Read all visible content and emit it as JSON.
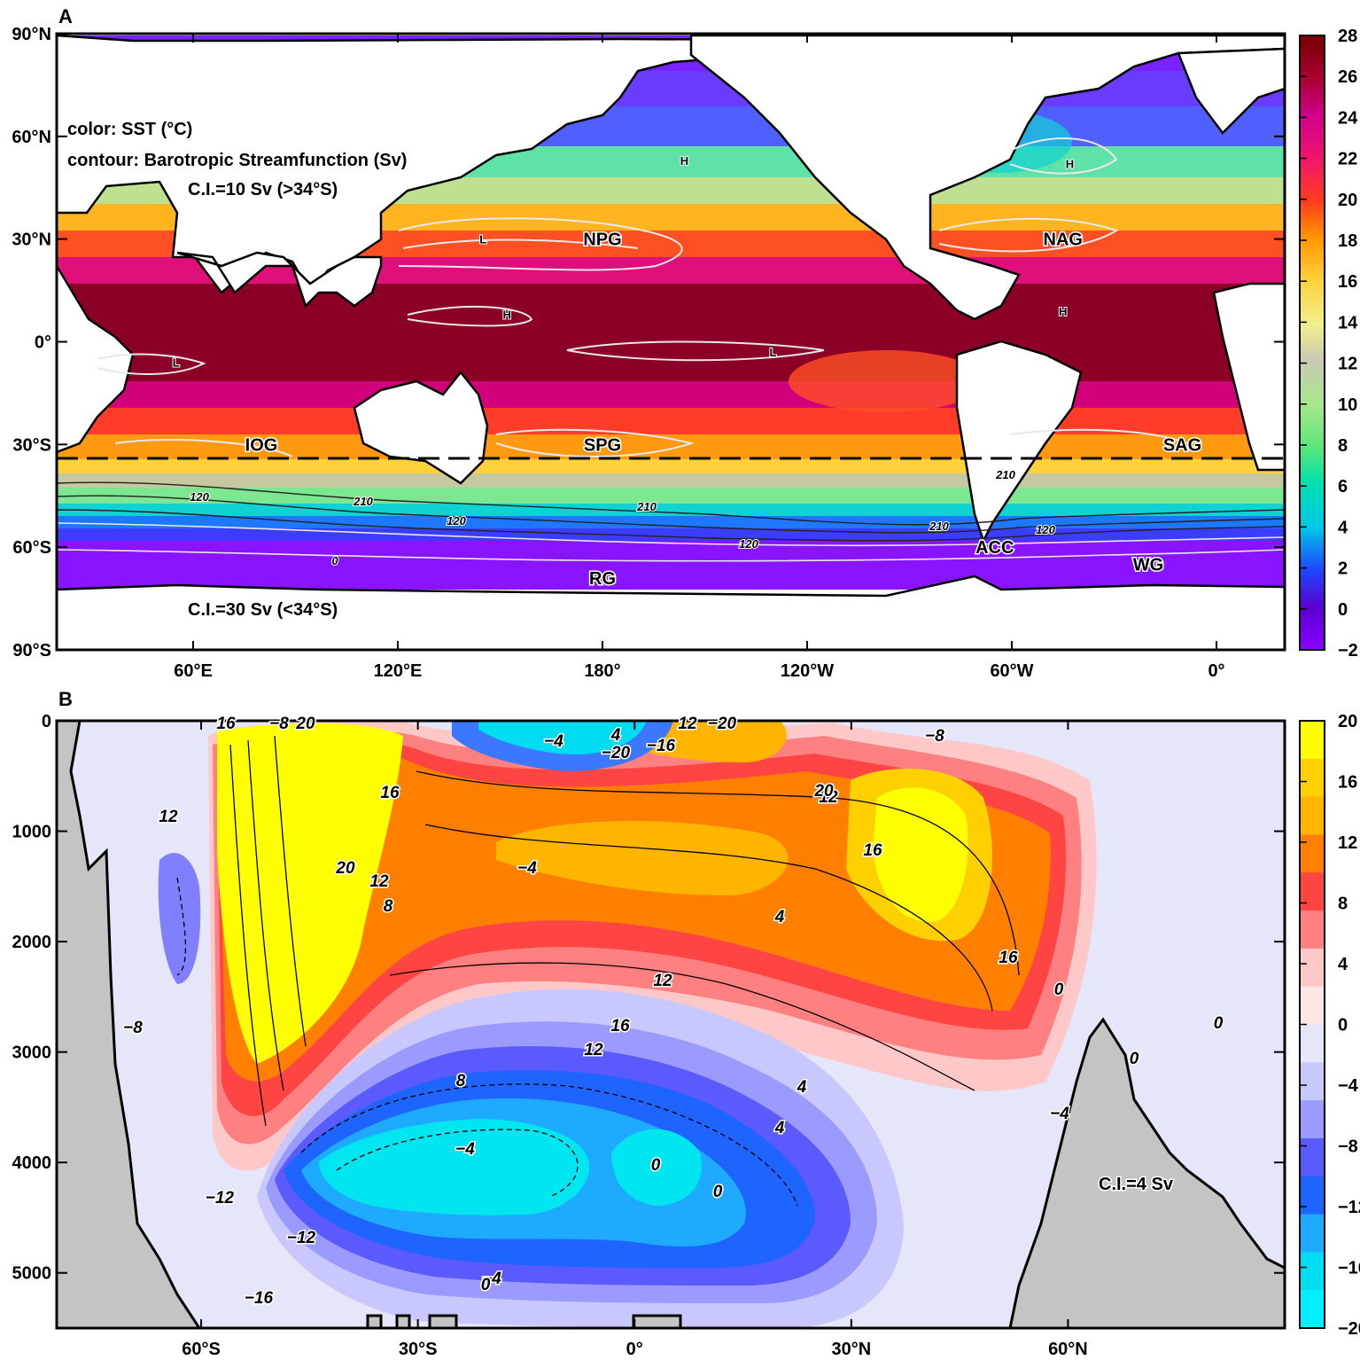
{
  "chart_data": [
    {
      "panel": "A",
      "type": "heatmap",
      "annotations": {
        "color_desc": "color: SST (°C)",
        "contour_desc": "contour: Barotropic Streamfunction (Sv)",
        "ci_north": "C.I.=10 Sv (>34°S)",
        "ci_south": "C.I.=30 Sv (<34°S)"
      },
      "x_ticks": [
        "60°E",
        "120°E",
        "180°",
        "120°W",
        "60°W",
        "0°"
      ],
      "y_ticks": [
        "90°N",
        "60°N",
        "30°N",
        "0°",
        "30°S",
        "60°S",
        "90°S"
      ],
      "colorbar": {
        "ticks": [
          "28",
          "26",
          "24",
          "22",
          "20",
          "18",
          "16",
          "14",
          "12",
          "10",
          "8",
          "6",
          "4",
          "2",
          "0",
          "−2"
        ],
        "range": [
          -2,
          28
        ]
      },
      "regions": [
        {
          "label": "NPG",
          "lon": 180,
          "lat": 30
        },
        {
          "label": "NAG",
          "lon": -45,
          "lat": 30
        },
        {
          "label": "IOG",
          "lon": 80,
          "lat": -30
        },
        {
          "label": "SPG",
          "lon": 180,
          "lat": -30
        },
        {
          "label": "SAG",
          "lon": -10,
          "lat": -30
        },
        {
          "label": "ACC",
          "lon": -65,
          "lat": -60
        },
        {
          "label": "RG",
          "lon": 180,
          "lat": -69
        },
        {
          "label": "WG",
          "lon": -20,
          "lat": -65
        }
      ],
      "highs_lows": [
        {
          "label": "H",
          "lon": -156,
          "lat": 53
        },
        {
          "label": "H",
          "lon": -43,
          "lat": 52
        },
        {
          "label": "H",
          "lon": 152,
          "lat": 8
        },
        {
          "label": "H",
          "lon": -45,
          "lat": 9
        },
        {
          "label": "L",
          "lon": 145,
          "lat": 30
        },
        {
          "label": "L",
          "lon": -130,
          "lat": -3
        },
        {
          "label": "L",
          "lon": 55,
          "lat": -6
        }
      ],
      "contour_labels": [
        "120",
        "210",
        "210",
        "120",
        "120",
        "210",
        "120",
        "210",
        "0"
      ],
      "boundary_lat": -34
    },
    {
      "panel": "B",
      "type": "heatmap",
      "annotation": "C.I.=4 Sv",
      "x_ticks": [
        "60°S",
        "30°S",
        "0°",
        "30°N",
        "60°N"
      ],
      "y_ticks": [
        "0",
        "1000",
        "2000",
        "3000",
        "4000",
        "5000"
      ],
      "colorbar": {
        "ticks": [
          "20",
          "16",
          "12",
          "8",
          "4",
          "0",
          "−4",
          "−8",
          "−12",
          "−16",
          "−20"
        ],
        "range": [
          -20,
          20
        ]
      },
      "cells": [
        {
          "lat": -50,
          "depth": 1200,
          "value": 22
        },
        {
          "lat": -48,
          "depth": 2200,
          "value": 20
        },
        {
          "lat": 0,
          "depth": 1400,
          "value": 13
        },
        {
          "lat": 42,
          "depth": 1200,
          "value": 18
        },
        {
          "lat": -30,
          "depth": 3900,
          "value": -17
        },
        {
          "lat": 0,
          "depth": 3900,
          "value": -13
        },
        {
          "lat": -70,
          "depth": 1900,
          "value": -6
        }
      ],
      "contour_labels": [
        "16",
        "−8",
        "20",
        "16",
        "20",
        "12",
        "8",
        "12",
        "4",
        "−4",
        "−20",
        "−16",
        "−4",
        "4",
        "12",
        "16",
        "12",
        "−20",
        "20",
        "16",
        "0",
        "12",
        "16",
        "12",
        "8",
        "4",
        "4",
        "0",
        "−4",
        "−12",
        "−4",
        "−8",
        "−12",
        "−16",
        "−8",
        "−4",
        "0",
        "0",
        "0",
        "0",
        "0"
      ]
    }
  ]
}
